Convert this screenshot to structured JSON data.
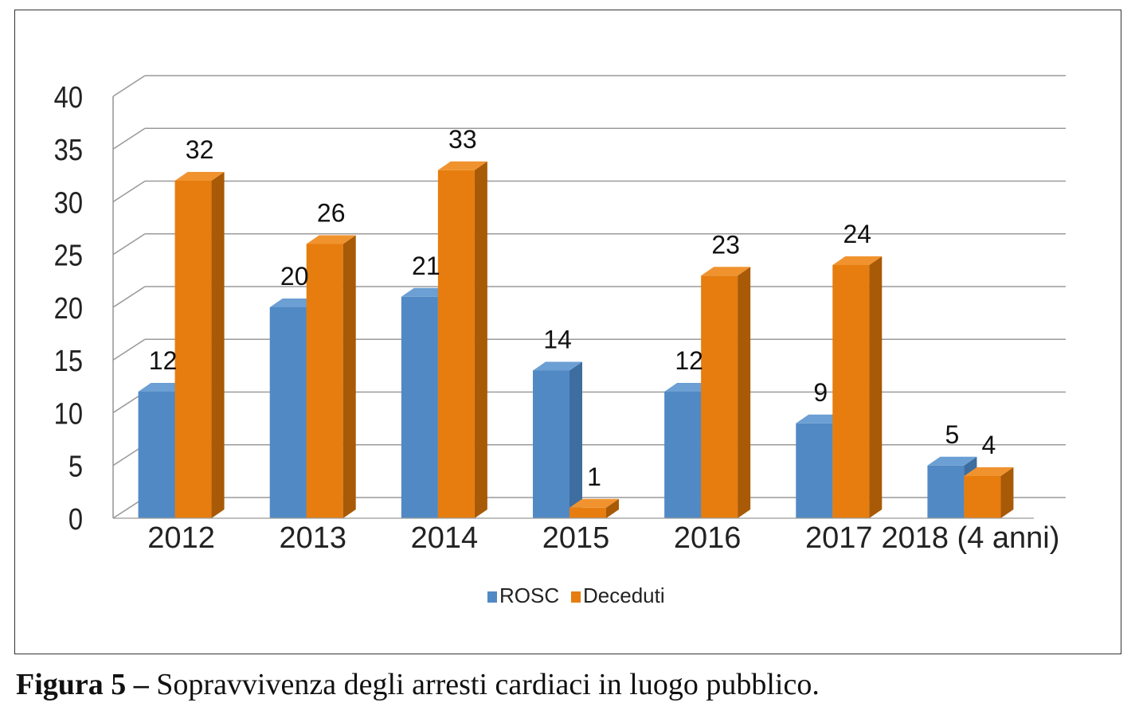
{
  "chart_data": {
    "type": "bar",
    "style": "3d-clustered",
    "categories": [
      "2012",
      "2013",
      "2014",
      "2015",
      "2016",
      "2017",
      "2018 (4 anni)"
    ],
    "series": [
      {
        "name": "ROSC",
        "color": "#5189C4",
        "values": [
          12,
          20,
          21,
          14,
          12,
          9,
          5
        ]
      },
      {
        "name": "Deceduti",
        "color": "#E67D0E",
        "values": [
          32,
          26,
          33,
          1,
          23,
          24,
          4
        ]
      }
    ],
    "data_labels": {
      "ROSC": [
        "12",
        "20",
        "21",
        "14",
        "12",
        "9",
        "5"
      ],
      "Deceduti": [
        "32",
        "26",
        "33",
        "1",
        "23",
        "24",
        "4"
      ]
    },
    "ylim": [
      0,
      40
    ],
    "y_ticks": [
      0,
      5,
      10,
      15,
      20,
      25,
      30,
      35,
      40
    ],
    "y_tick_labels": [
      "0",
      "5",
      "10",
      "15",
      "20",
      "25",
      "30",
      "35",
      "40"
    ],
    "grid": true,
    "legend": "bottom-center",
    "xlabel": "",
    "ylabel": ""
  },
  "caption": {
    "lead": "Figura 5 –",
    "text": " Sopravvivenza degli arresti cardiaci in luogo pubblico."
  }
}
